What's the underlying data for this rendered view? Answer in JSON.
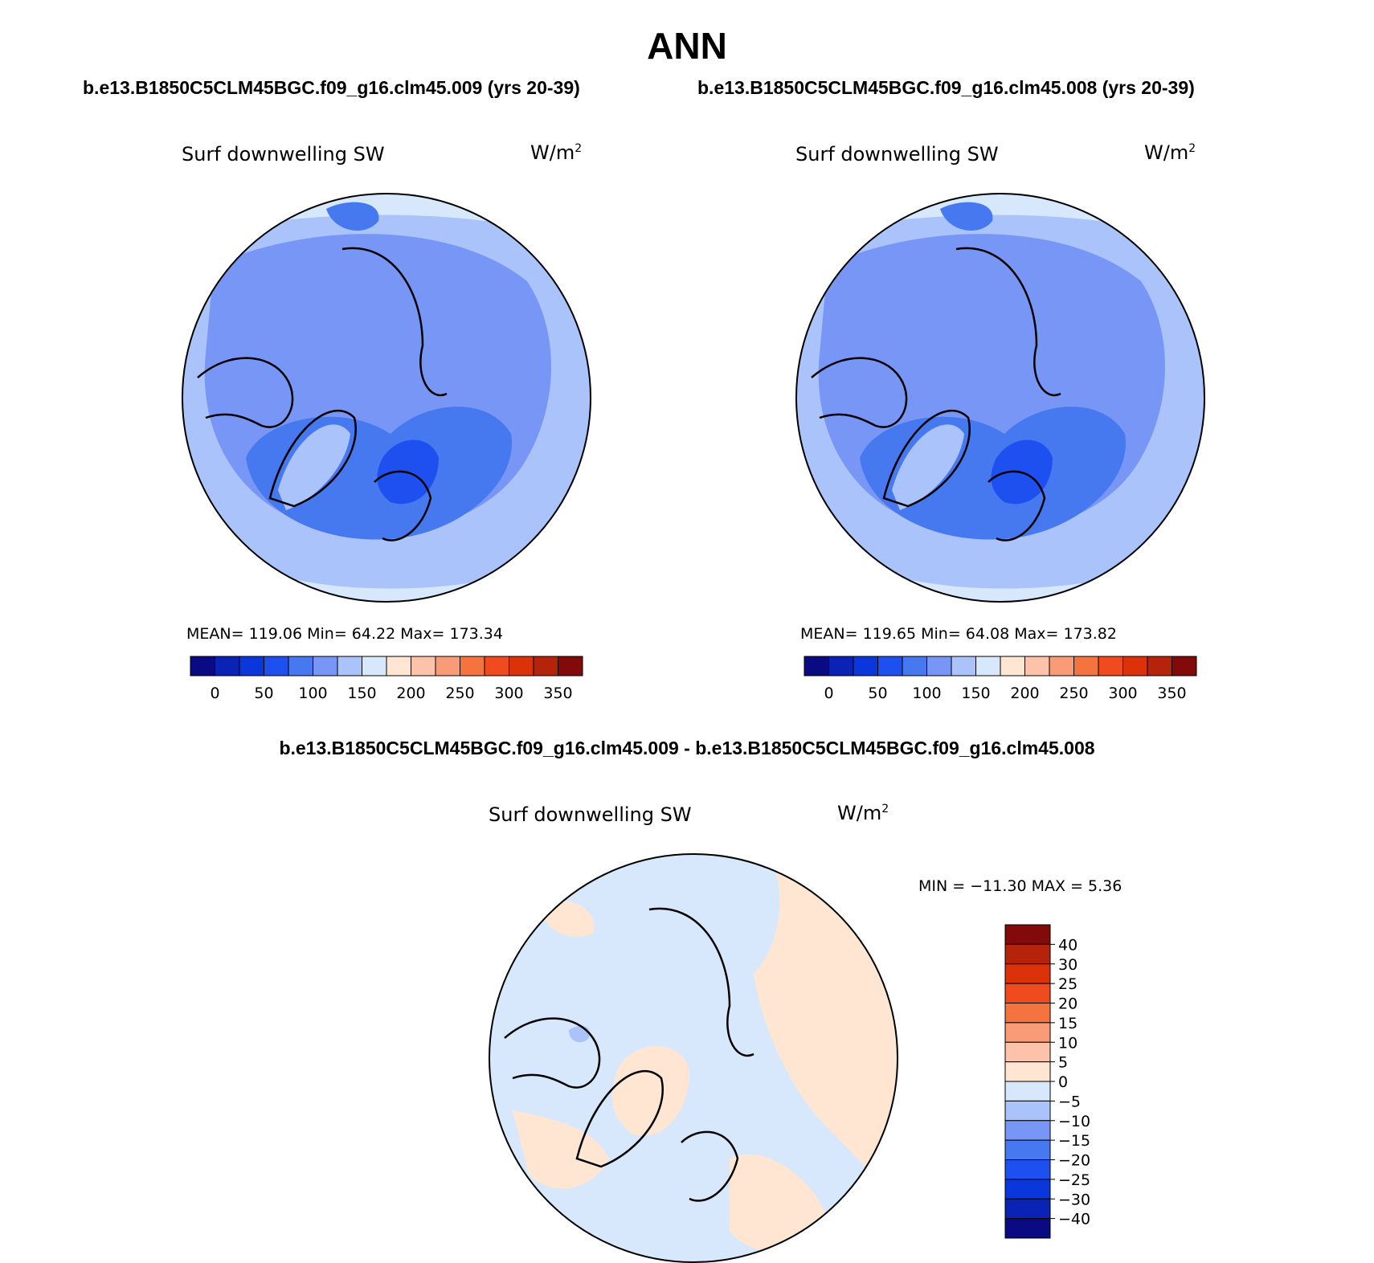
{
  "title": "ANN",
  "panels": [
    {
      "case_title": "b.e13.B1850C5CLM45BGC.f09_g16.clm45.009 (yrs 20-39)",
      "variable": "Surf downwelling SW",
      "units": "W/m",
      "units_exp": "2",
      "stats": {
        "mean_label": "MEAN=",
        "mean": "119.06",
        "min_label": "Min=",
        "min": "64.22",
        "max_label": "Max=",
        "max": "173.34"
      }
    },
    {
      "case_title": "b.e13.B1850C5CLM45BGC.f09_g16.clm45.008 (yrs 20-39)",
      "variable": "Surf downwelling SW",
      "units": "W/m",
      "units_exp": "2",
      "stats": {
        "mean_label": "MEAN=",
        "mean": "119.65",
        "min_label": "Min=",
        "min": "64.08",
        "max_label": "Max=",
        "max": "173.82"
      }
    }
  ],
  "colorbar_main": {
    "ticks": [
      "0",
      "50",
      "100",
      "150",
      "200",
      "250",
      "300",
      "350"
    ],
    "colors": [
      "#0a0a82",
      "#0a23b4",
      "#0a37dc",
      "#1e50f0",
      "#4678f0",
      "#7896f5",
      "#aac3fa",
      "#d7e8fc",
      "#fee6d2",
      "#fcc3aa",
      "#fa9b78",
      "#f5733f",
      "#f04b1e",
      "#dc320a",
      "#b4230a",
      "#820a0a"
    ]
  },
  "diff_panel": {
    "title": "b.e13.B1850C5CLM45BGC.f09_g16.clm45.009 - b.e13.B1850C5CLM45BGC.f09_g16.clm45.008",
    "variable": "Surf downwelling SW",
    "units": "W/m",
    "units_exp": "2",
    "minmax": {
      "min_label": "MIN =",
      "min": "−11.30",
      "max_label": "MAX =",
      "max": "5.36"
    }
  },
  "colorbar_diff": {
    "ticks": [
      "40",
      "30",
      "25",
      "20",
      "15",
      "10",
      "5",
      "0",
      "−5",
      "−10",
      "−15",
      "−20",
      "−25",
      "−30",
      "−40"
    ],
    "colors": [
      "#820a0a",
      "#b4230a",
      "#dc320a",
      "#f04b1e",
      "#f5733f",
      "#fa9b78",
      "#fcc3aa",
      "#fee6d2",
      "#d7e8fc",
      "#aac3fa",
      "#7896f5",
      "#4678f0",
      "#1e50f0",
      "#0a37dc",
      "#0a23b4",
      "#0a0a82"
    ]
  },
  "map_colors": {
    "light": "#d7e8fc",
    "pale": "#aac3fa",
    "mid": "#7896f5",
    "deep": "#4678f0",
    "strong": "#1e50f0",
    "warm": "#fee6d2"
  }
}
